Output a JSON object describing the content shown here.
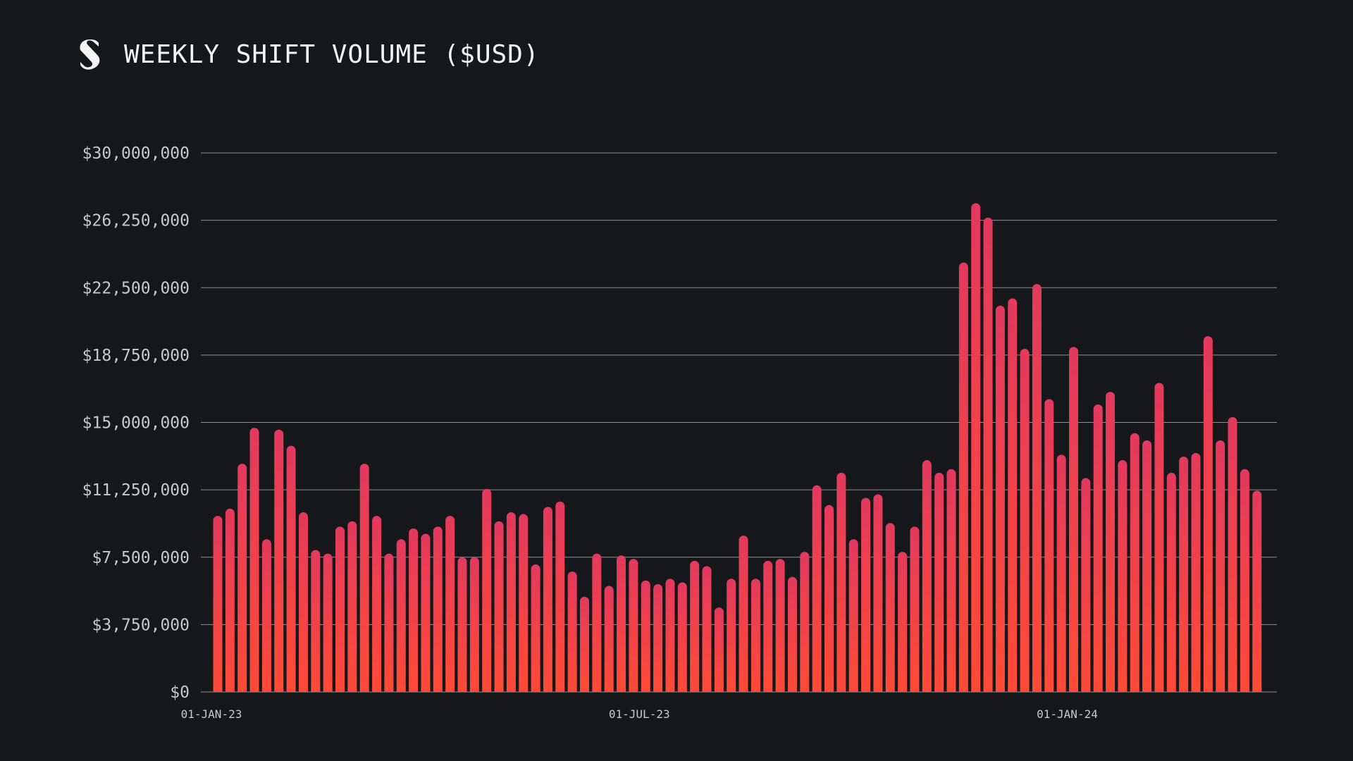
{
  "header": {
    "title": "WEEKLY SHIFT VOLUME ($USD)",
    "logo_icon": "shapeshift-logo-icon"
  },
  "colors": {
    "background": "#17181b",
    "bar_top": "#e33a5e",
    "bar_bottom": "#ff4a36",
    "grid": "#b8b8b8",
    "axis_text": "#c9c9c9"
  },
  "chart_data": {
    "type": "bar",
    "title": "WEEKLY SHIFT VOLUME ($USD)",
    "xlabel": "",
    "ylabel": "",
    "ylim": [
      0,
      30000000
    ],
    "grid": true,
    "y_ticks": [
      {
        "value": 0,
        "label": "$0"
      },
      {
        "value": 3750000,
        "label": "$3,750,000"
      },
      {
        "value": 7500000,
        "label": "$7,500,000"
      },
      {
        "value": 11250000,
        "label": "$11,250,000"
      },
      {
        "value": 15000000,
        "label": "$15,000,000"
      },
      {
        "value": 18750000,
        "label": "$18,750,000"
      },
      {
        "value": 22500000,
        "label": "$22,500,000"
      },
      {
        "value": 26250000,
        "label": "$26,250,000"
      },
      {
        "value": 30000000,
        "label": "$30,000,000"
      }
    ],
    "x_ticks": [
      {
        "index": 0,
        "label": "01-JAN-23"
      },
      {
        "index": 35,
        "label": "01-JUL-23"
      },
      {
        "index": 70,
        "label": "01-JAN-24"
      }
    ],
    "values": [
      9800000,
      10200000,
      12700000,
      14700000,
      8500000,
      14600000,
      13700000,
      10000000,
      7900000,
      7700000,
      9200000,
      9500000,
      12700000,
      9800000,
      7700000,
      8500000,
      9100000,
      8800000,
      9200000,
      9800000,
      7500000,
      7500000,
      11300000,
      9500000,
      10000000,
      9900000,
      7100000,
      10300000,
      10600000,
      6700000,
      5300000,
      7700000,
      5900000,
      7600000,
      7400000,
      6200000,
      6000000,
      6300000,
      6100000,
      7300000,
      7000000,
      4700000,
      6300000,
      8700000,
      6300000,
      7300000,
      7400000,
      6400000,
      7800000,
      11500000,
      10400000,
      12200000,
      8500000,
      10800000,
      11000000,
      9400000,
      7800000,
      9200000,
      12900000,
      12200000,
      12400000,
      23900000,
      27200000,
      26400000,
      21500000,
      21900000,
      19100000,
      22700000,
      16300000,
      13200000,
      19200000,
      11900000,
      16000000,
      16700000,
      12900000,
      14400000,
      14000000,
      17200000,
      12200000,
      13100000,
      13300000,
      19800000,
      14000000,
      15300000,
      12400000,
      11200000
    ]
  }
}
